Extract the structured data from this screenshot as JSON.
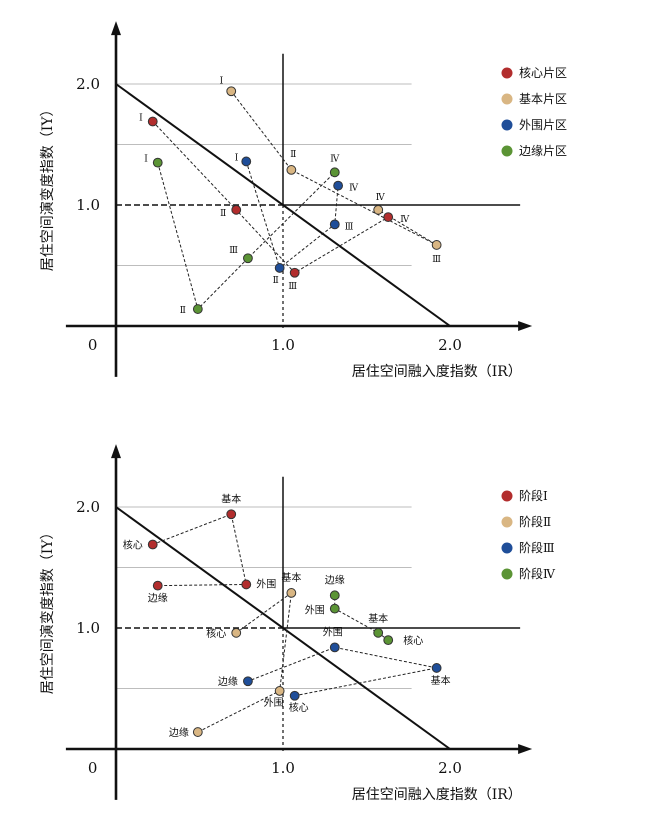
{
  "colors": {
    "core": "#b22d2d",
    "basic": "#d9b683",
    "periphery": "#1f4e99",
    "edge": "#5b9435",
    "axis": "#111111",
    "grid": "#bdbdbd"
  },
  "chart_data": [
    {
      "type": "scatter",
      "xlabel": "居住空间融入度指数（IR）",
      "ylabel": "居住空间演变度指数（IY）",
      "origin_label": "0",
      "x_ticks": [
        "1.0",
        "2.0"
      ],
      "y_ticks": [
        "1.0",
        "2.0"
      ],
      "xlim": [
        0,
        2.5
      ],
      "ylim": [
        0,
        2.5
      ],
      "grid": "horizontal lines at 0.5, 1.5, 2.0",
      "reference": "diagonal line from (0,2) to (2,0); vertical line at x=1; horizontal line at y=1",
      "legend_position": "top-right",
      "legend": [
        {
          "label": "核心片区",
          "color_key": "core"
        },
        {
          "label": "基本片区",
          "color_key": "basic"
        },
        {
          "label": "外围片区",
          "color_key": "periphery"
        },
        {
          "label": "边缘片区",
          "color_key": "edge"
        }
      ],
      "series": [
        {
          "name": "核心片区",
          "color_key": "core",
          "points": [
            {
              "label": "Ⅰ",
              "x": 0.22,
              "y": 1.69
            },
            {
              "label": "Ⅱ",
              "x": 0.72,
              "y": 0.96
            },
            {
              "label": "Ⅲ",
              "x": 1.07,
              "y": 0.44
            },
            {
              "label": "Ⅳ",
              "x": 1.63,
              "y": 0.9
            }
          ]
        },
        {
          "name": "基本片区",
          "color_key": "basic",
          "points": [
            {
              "label": "Ⅰ",
              "x": 0.69,
              "y": 1.94
            },
            {
              "label": "Ⅱ",
              "x": 1.05,
              "y": 1.29
            },
            {
              "label": "Ⅲ",
              "x": 1.92,
              "y": 0.67
            },
            {
              "label": "Ⅳ",
              "x": 1.57,
              "y": 0.96
            }
          ]
        },
        {
          "name": "外围片区",
          "color_key": "periphery",
          "points": [
            {
              "label": "Ⅰ",
              "x": 0.78,
              "y": 1.36
            },
            {
              "label": "Ⅱ",
              "x": 0.98,
              "y": 0.48
            },
            {
              "label": "Ⅲ",
              "x": 1.31,
              "y": 0.84
            },
            {
              "label": "Ⅳ",
              "x": 1.33,
              "y": 1.16
            }
          ]
        },
        {
          "name": "边缘片区",
          "color_key": "edge",
          "points": [
            {
              "label": "Ⅰ",
              "x": 0.25,
              "y": 1.35
            },
            {
              "label": "Ⅱ",
              "x": 0.49,
              "y": 0.14
            },
            {
              "label": "Ⅲ",
              "x": 0.79,
              "y": 0.56
            },
            {
              "label": "Ⅳ",
              "x": 1.31,
              "y": 1.27
            }
          ]
        }
      ]
    },
    {
      "type": "scatter",
      "xlabel": "居住空间融入度指数（IR）",
      "ylabel": "居住空间演变度指数（IY）",
      "origin_label": "0",
      "x_ticks": [
        "1.0",
        "2.0"
      ],
      "y_ticks": [
        "1.0",
        "2.0"
      ],
      "xlim": [
        0,
        2.5
      ],
      "ylim": [
        0,
        2.5
      ],
      "grid": "horizontal lines at 0.5, 1.5, 2.0",
      "reference": "diagonal line from (0,2) to (2,0); vertical line at x=1; horizontal line at y=1",
      "legend_position": "top-right",
      "legend": [
        {
          "label": "阶段Ⅰ",
          "color_key": "core"
        },
        {
          "label": "阶段Ⅱ",
          "color_key": "basic"
        },
        {
          "label": "阶段Ⅲ",
          "color_key": "periphery"
        },
        {
          "label": "阶段Ⅳ",
          "color_key": "edge"
        }
      ],
      "series": [
        {
          "name": "阶段Ⅰ",
          "color_key": "core",
          "points": [
            {
              "label": "核心",
              "x": 0.22,
              "y": 1.69
            },
            {
              "label": "基本",
              "x": 0.69,
              "y": 1.94
            },
            {
              "label": "外围",
              "x": 0.78,
              "y": 1.36
            },
            {
              "label": "边缘",
              "x": 0.25,
              "y": 1.35
            }
          ]
        },
        {
          "name": "阶段Ⅱ",
          "color_key": "basic",
          "points": [
            {
              "label": "核心",
              "x": 0.72,
              "y": 0.96
            },
            {
              "label": "基本",
              "x": 1.05,
              "y": 1.29
            },
            {
              "label": "外围",
              "x": 0.98,
              "y": 0.48
            },
            {
              "label": "边缘",
              "x": 0.49,
              "y": 0.14
            }
          ]
        },
        {
          "name": "阶段Ⅲ",
          "color_key": "periphery",
          "points": [
            {
              "label": "核心",
              "x": 1.07,
              "y": 0.44
            },
            {
              "label": "基本",
              "x": 1.92,
              "y": 0.67
            },
            {
              "label": "外围",
              "x": 1.31,
              "y": 0.84
            },
            {
              "label": "边缘",
              "x": 0.79,
              "y": 0.56
            }
          ]
        },
        {
          "name": "阶段Ⅳ",
          "color_key": "edge",
          "points": [
            {
              "label": "核心",
              "x": 1.63,
              "y": 0.9
            },
            {
              "label": "基本",
              "x": 1.57,
              "y": 0.96
            },
            {
              "label": "外围",
              "x": 1.31,
              "y": 1.16
            },
            {
              "label": "边缘",
              "x": 1.31,
              "y": 1.27
            }
          ]
        }
      ]
    }
  ]
}
